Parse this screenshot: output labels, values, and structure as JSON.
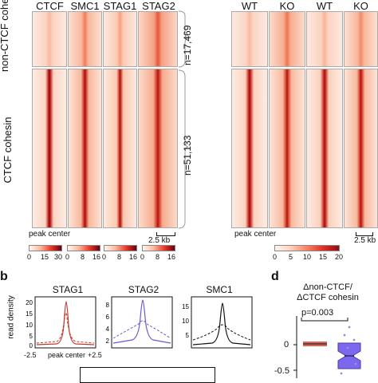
{
  "left": {
    "columns": [
      "CTCF",
      "SMC1",
      "STAG1",
      "STAG2"
    ],
    "row_labels": {
      "top": "non-CTCF cohesin",
      "bottom": "CTCF cohesin"
    },
    "n_top": "n=17,469",
    "n_bottom": "n=51,133",
    "peak_center": "peak center",
    "scale_bar": "2.5 kb",
    "colorbars": [
      {
        "ticks": [
          "0",
          "15",
          "30"
        ]
      },
      {
        "ticks": [
          "0",
          "8",
          "16"
        ]
      },
      {
        "ticks": [
          "0",
          "8",
          "16"
        ]
      },
      {
        "ticks": [
          "0",
          "8",
          "16"
        ]
      }
    ]
  },
  "right": {
    "columns": [
      "WT",
      "KO",
      "WT",
      "KO"
    ],
    "peak_center": "peak center",
    "scale_bar": "2.5 kb",
    "colorbar_ticks": [
      "0",
      "5",
      "10",
      "15",
      "20"
    ]
  },
  "panel_b": {
    "letter": "b",
    "ylabel": "read density",
    "xlabel_left": "-2.5",
    "xlabel_mid": "peak center",
    "xlabel_right": "+2.5",
    "plots": [
      {
        "title": "STAG1",
        "color": "#c0392b",
        "yticks": [
          "0",
          "5",
          "10",
          "15",
          "20"
        ]
      },
      {
        "title": "STAG2",
        "color": "#6a5acd",
        "yticks": [
          "2",
          "4",
          "6",
          "8"
        ]
      },
      {
        "title": "SMC1",
        "color": "#111111",
        "yticks": [
          "5",
          "10",
          "15"
        ]
      }
    ]
  },
  "panel_d": {
    "letter": "d",
    "title_line1": "Δnon-CTCF/",
    "title_line2": "ΔCTCF cohesin",
    "pvalue": "p=0.003",
    "yticks": [
      "0",
      "-0.5"
    ],
    "colors": {
      "red": "#c0392b",
      "purple": "#7b68ee"
    }
  }
}
